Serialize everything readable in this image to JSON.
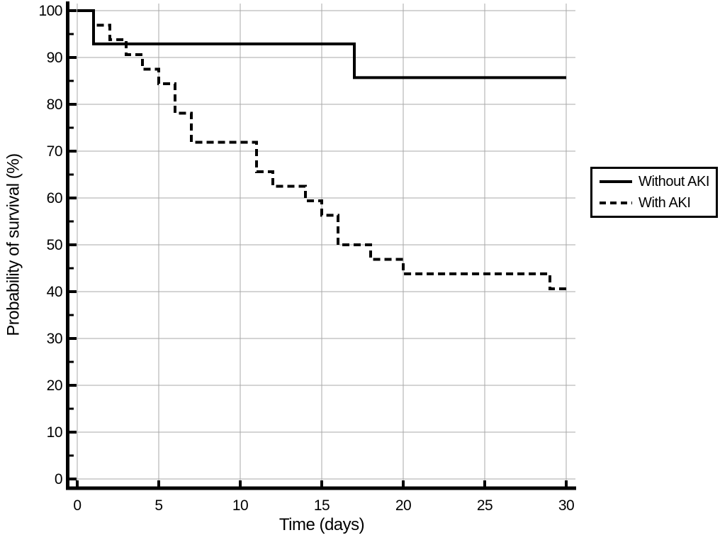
{
  "figure": {
    "background": "#ffffff",
    "text_color": "#000000"
  },
  "chart_data": {
    "type": "line",
    "subtype": "kaplan-meier-step",
    "title": "",
    "xlabel": "Time (days)",
    "ylabel": "Probability of survival (%)",
    "xlim": [
      0,
      30
    ],
    "ylim": [
      0,
      100
    ],
    "xticks": [
      0,
      5,
      10,
      15,
      20,
      25,
      30
    ],
    "yticks": [
      0,
      10,
      20,
      30,
      40,
      50,
      60,
      70,
      80,
      90,
      100
    ],
    "yticks_minor": [
      5,
      15,
      25,
      35,
      45,
      55,
      65,
      75,
      85,
      95
    ],
    "grid": true,
    "gridline_color": "#a9a9a9",
    "axis_color": "#000000",
    "legend_position": "right-outside",
    "series": [
      {
        "name": "Without AKI",
        "line_style": "solid",
        "color": "#000000",
        "steps": [
          [
            0,
            100
          ],
          [
            1,
            92.9
          ],
          [
            17,
            85.7
          ],
          [
            30,
            85.7
          ]
        ]
      },
      {
        "name": "With AKI",
        "line_style": "dashed",
        "color": "#000000",
        "steps": [
          [
            0,
            100
          ],
          [
            1,
            96.9
          ],
          [
            2,
            93.8
          ],
          [
            3,
            90.6
          ],
          [
            4,
            87.5
          ],
          [
            5,
            84.4
          ],
          [
            6,
            78.1
          ],
          [
            7,
            71.9
          ],
          [
            11,
            65.6
          ],
          [
            12,
            62.5
          ],
          [
            14,
            59.4
          ],
          [
            15,
            56.3
          ],
          [
            16,
            50.0
          ],
          [
            18,
            46.9
          ],
          [
            20,
            43.8
          ],
          [
            29,
            40.6
          ],
          [
            30,
            40.6
          ]
        ]
      }
    ]
  }
}
